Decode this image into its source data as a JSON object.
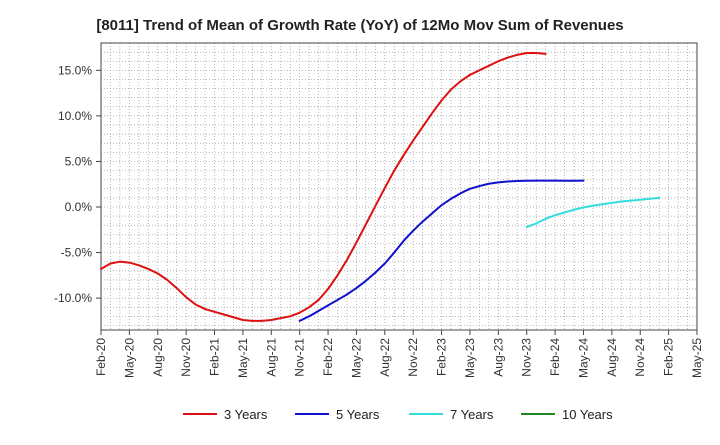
{
  "chart_data": {
    "type": "line",
    "title": "[8011]  Trend of Mean of Growth Rate (YoY) of 12Mo Mov Sum of Revenues",
    "xlabel": "",
    "ylabel": "",
    "x_tick_labels": [
      "Feb-20",
      "May-20",
      "Aug-20",
      "Nov-20",
      "Feb-21",
      "May-21",
      "Aug-21",
      "Nov-21",
      "Feb-22",
      "May-22",
      "Aug-22",
      "Nov-22",
      "Feb-23",
      "May-23",
      "Aug-23",
      "Nov-23",
      "Feb-24",
      "May-24",
      "Aug-24",
      "Nov-24",
      "Feb-25",
      "May-25"
    ],
    "y_ticks": [
      -10,
      -5,
      0,
      5,
      10,
      15
    ],
    "y_tick_labels": [
      "-10.0%",
      "-5.0%",
      "0.0%",
      "5.0%",
      "10.0%",
      "15.0%"
    ],
    "ylim": [
      -13.5,
      18
    ],
    "grid": true,
    "legend_position": "bottom",
    "series": [
      {
        "name": "3 Years",
        "color": "#dd1111",
        "points": [
          [
            0,
            -6.8
          ],
          [
            1,
            -6.2
          ],
          [
            2,
            -6.0
          ],
          [
            3,
            -6.1
          ],
          [
            4,
            -6.4
          ],
          [
            5,
            -6.8
          ],
          [
            6,
            -7.3
          ],
          [
            7,
            -8.0
          ],
          [
            8,
            -8.9
          ],
          [
            9,
            -9.9
          ],
          [
            10,
            -10.7
          ],
          [
            11,
            -11.2
          ],
          [
            12,
            -11.5
          ],
          [
            13,
            -11.8
          ],
          [
            14,
            -12.1
          ],
          [
            15,
            -12.4
          ],
          [
            16,
            -12.5
          ],
          [
            17,
            -12.5
          ],
          [
            18,
            -12.4
          ],
          [
            19,
            -12.2
          ],
          [
            20,
            -12.0
          ],
          [
            21,
            -11.6
          ],
          [
            22,
            -11.0
          ],
          [
            23,
            -10.2
          ],
          [
            24,
            -9.0
          ],
          [
            25,
            -7.5
          ],
          [
            26,
            -5.8
          ],
          [
            27,
            -3.9
          ],
          [
            28,
            -1.9
          ],
          [
            29,
            0.1
          ],
          [
            30,
            2.1
          ],
          [
            31,
            4.0
          ],
          [
            32,
            5.7
          ],
          [
            33,
            7.3
          ],
          [
            34,
            8.8
          ],
          [
            35,
            10.3
          ],
          [
            36,
            11.7
          ],
          [
            37,
            12.9
          ],
          [
            38,
            13.8
          ],
          [
            39,
            14.5
          ],
          [
            40,
            15.0
          ],
          [
            41,
            15.5
          ],
          [
            42,
            16.0
          ],
          [
            43,
            16.4
          ],
          [
            44,
            16.7
          ],
          [
            45,
            16.9
          ],
          [
            46,
            16.9
          ],
          [
            47,
            16.8
          ]
        ]
      },
      {
        "name": "5 Years",
        "color": "#1111cc",
        "points": [
          [
            21,
            -12.5
          ],
          [
            22,
            -12.0
          ],
          [
            23,
            -11.4
          ],
          [
            24,
            -10.8
          ],
          [
            25,
            -10.2
          ],
          [
            26,
            -9.6
          ],
          [
            27,
            -8.9
          ],
          [
            28,
            -8.1
          ],
          [
            29,
            -7.2
          ],
          [
            30,
            -6.2
          ],
          [
            31,
            -5.0
          ],
          [
            32,
            -3.7
          ],
          [
            33,
            -2.6
          ],
          [
            34,
            -1.6
          ],
          [
            35,
            -0.7
          ],
          [
            36,
            0.2
          ],
          [
            37,
            0.9
          ],
          [
            38,
            1.5
          ],
          [
            39,
            2.0
          ],
          [
            40,
            2.3
          ],
          [
            41,
            2.55
          ],
          [
            42,
            2.7
          ],
          [
            43,
            2.8
          ],
          [
            44,
            2.85
          ],
          [
            45,
            2.88
          ],
          [
            46,
            2.9
          ],
          [
            47,
            2.9
          ],
          [
            48,
            2.9
          ],
          [
            49,
            2.88
          ],
          [
            50,
            2.88
          ],
          [
            51,
            2.9
          ]
        ]
      },
      {
        "name": "7 Years",
        "color": "#33dddd",
        "points": [
          [
            45,
            -2.2
          ],
          [
            46,
            -1.8
          ],
          [
            47,
            -1.3
          ],
          [
            48,
            -0.9
          ],
          [
            49,
            -0.6
          ],
          [
            50,
            -0.3
          ],
          [
            51,
            -0.05
          ],
          [
            52,
            0.15
          ],
          [
            53,
            0.3
          ],
          [
            54,
            0.45
          ],
          [
            55,
            0.6
          ],
          [
            56,
            0.7
          ],
          [
            57,
            0.8
          ],
          [
            58,
            0.9
          ],
          [
            59,
            1.0
          ]
        ]
      },
      {
        "name": "10 Years",
        "color": "#228822",
        "points": []
      }
    ]
  }
}
